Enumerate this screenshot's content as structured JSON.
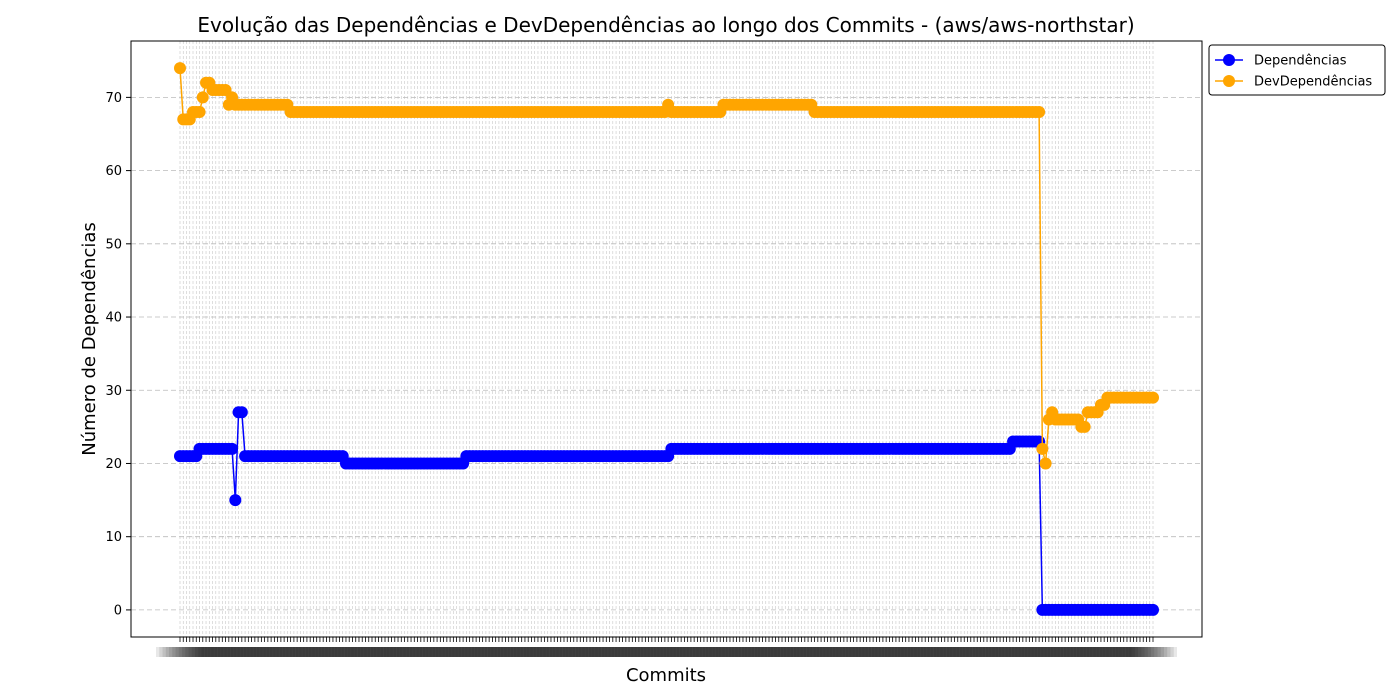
{
  "chart_data": {
    "type": "line",
    "title": "Evolução das Dependências e DevDependências ao longo dos Commits - (aws/aws-northstar)",
    "xlabel": "Commits",
    "ylabel": "Número de Dependências",
    "ylim": [
      -3.7,
      77.7
    ],
    "yticks": [
      0,
      10,
      20,
      30,
      40,
      50,
      60,
      70
    ],
    "grid": true,
    "legend_position": "top-right-outside",
    "num_commits": 300,
    "series": [
      {
        "name": "Dependências",
        "color": "#0000ff",
        "segments": [
          [
            0,
            21
          ],
          [
            5,
            21
          ],
          [
            6,
            22
          ],
          [
            16,
            22
          ],
          [
            17,
            15
          ],
          [
            18,
            27
          ],
          [
            19,
            27
          ],
          [
            20,
            21
          ],
          [
            50,
            21
          ],
          [
            51,
            20
          ],
          [
            87,
            20
          ],
          [
            88,
            21
          ],
          [
            150,
            21
          ],
          [
            151,
            22
          ],
          [
            255,
            22
          ],
          [
            256,
            23
          ],
          [
            264,
            23
          ],
          [
            265,
            0
          ],
          [
            299,
            0
          ]
        ]
      },
      {
        "name": "DevDependências",
        "color": "#ffa500",
        "segments": [
          [
            0,
            74
          ],
          [
            1,
            67
          ],
          [
            3,
            67
          ],
          [
            4,
            68
          ],
          [
            6,
            68
          ],
          [
            7,
            70
          ],
          [
            8,
            72
          ],
          [
            9,
            72
          ],
          [
            10,
            71
          ],
          [
            14,
            71
          ],
          [
            15,
            69
          ],
          [
            16,
            70
          ],
          [
            17,
            69
          ],
          [
            33,
            69
          ],
          [
            34,
            68
          ],
          [
            149,
            68
          ],
          [
            150,
            69
          ],
          [
            151,
            68
          ],
          [
            166,
            68
          ],
          [
            167,
            69
          ],
          [
            194,
            69
          ],
          [
            195,
            68
          ],
          [
            264,
            68
          ],
          [
            265,
            22
          ],
          [
            266,
            20
          ],
          [
            267,
            26
          ],
          [
            268,
            27
          ],
          [
            269,
            26
          ],
          [
            276,
            26
          ],
          [
            277,
            25
          ],
          [
            278,
            25
          ],
          [
            279,
            27
          ],
          [
            282,
            27
          ],
          [
            283,
            28
          ],
          [
            284,
            28
          ],
          [
            285,
            29
          ],
          [
            299,
            29
          ]
        ]
      }
    ]
  }
}
